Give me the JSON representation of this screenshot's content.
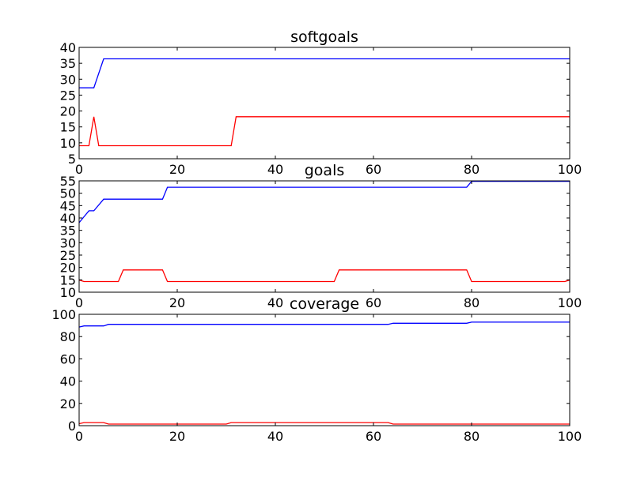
{
  "chart_data": [
    {
      "type": "line",
      "title": "softgoals",
      "xlim": [
        0,
        100
      ],
      "ylim": [
        5,
        40
      ],
      "xticks": [
        0,
        20,
        40,
        60,
        80,
        100
      ],
      "yticks": [
        5,
        10,
        15,
        20,
        25,
        30,
        35,
        40
      ],
      "grid": false,
      "series": [
        {
          "color": "#0000ff",
          "x": [
            0,
            3,
            5,
            100
          ],
          "y": [
            27.3,
            27.3,
            36.4,
            36.4
          ]
        },
        {
          "color": "#ff0000",
          "x": [
            0,
            2,
            3,
            4,
            31,
            32,
            100
          ],
          "y": [
            9.1,
            9.1,
            18.2,
            9.1,
            9.1,
            18.2,
            18.2
          ]
        }
      ]
    },
    {
      "type": "line",
      "title": "goals",
      "xlim": [
        0,
        100
      ],
      "ylim": [
        10,
        55
      ],
      "xticks": [
        0,
        20,
        40,
        60,
        80,
        100
      ],
      "yticks": [
        10,
        15,
        20,
        25,
        30,
        35,
        40,
        45,
        50,
        55
      ],
      "grid": false,
      "series": [
        {
          "color": "#0000ff",
          "x": [
            0,
            1,
            2,
            3,
            5,
            17,
            18,
            79,
            80,
            100
          ],
          "y": [
            38.1,
            40.5,
            42.9,
            42.9,
            47.6,
            47.6,
            52.4,
            52.4,
            54.8,
            54.8
          ]
        },
        {
          "color": "#ff0000",
          "x": [
            0,
            1,
            8,
            9,
            17,
            18,
            52,
            53,
            79,
            80,
            99,
            100
          ],
          "y": [
            14.9,
            14.3,
            14.3,
            19.0,
            19.0,
            14.3,
            14.3,
            19.0,
            19.0,
            14.3,
            14.3,
            14.9
          ]
        }
      ]
    },
    {
      "type": "line",
      "title": "coverage",
      "xlim": [
        0,
        100
      ],
      "ylim": [
        0,
        100
      ],
      "xticks": [
        0,
        20,
        40,
        60,
        80,
        100
      ],
      "yticks": [
        0,
        20,
        40,
        60,
        80,
        100
      ],
      "grid": false,
      "series": [
        {
          "color": "#0000ff",
          "x": [
            0,
            1,
            5,
            6,
            63,
            64,
            79,
            80,
            100
          ],
          "y": [
            88.6,
            89.6,
            89.6,
            91.0,
            91.0,
            92.0,
            92.0,
            93.0,
            93.0
          ]
        },
        {
          "color": "#ff0000",
          "x": [
            0,
            1,
            5,
            6,
            30,
            31,
            63,
            64,
            100
          ],
          "y": [
            1.8,
            2.8,
            2.8,
            1.4,
            1.4,
            2.8,
            2.8,
            1.4,
            1.4
          ]
        }
      ]
    }
  ]
}
